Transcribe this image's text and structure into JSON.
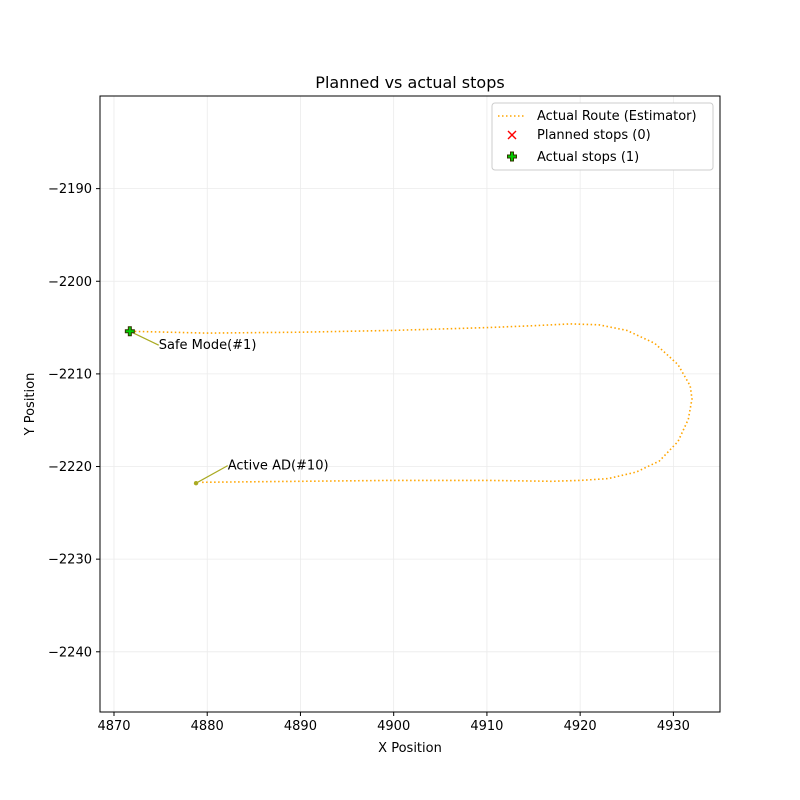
{
  "chart_data": {
    "type": "line",
    "title": "Planned vs actual stops",
    "xlabel": "X Position",
    "ylabel": "Y Position",
    "xlim": [
      4868.5,
      4935
    ],
    "ylim": [
      -2246.5,
      -2180
    ],
    "xticks": [
      4870,
      4880,
      4890,
      4900,
      4910,
      4920,
      4930
    ],
    "yticks": [
      -2240,
      -2230,
      -2220,
      -2210,
      -2200,
      -2190
    ],
    "xtick_labels": [
      "4870",
      "4880",
      "4890",
      "4900",
      "4910",
      "4920",
      "4930"
    ],
    "ytick_labels": [
      "−2240",
      "−2230",
      "−2220",
      "−2210",
      "−2200",
      "−2190"
    ],
    "grid": true,
    "legend_position": "top-right",
    "series": [
      {
        "name": "Actual Route (Estimator)",
        "kind": "dotted-line",
        "color": "#ffa500",
        "x": [
          4871.8,
          4880,
          4890,
          4900,
          4910,
          4915,
          4919,
          4922,
          4925,
          4928,
          4930.5,
          4931.8,
          4932,
          4931.6,
          4930.5,
          4928.5,
          4926,
          4923,
          4920,
          4917,
          4910,
          4900,
          4890,
          4879.3
        ],
        "y": [
          -2205.4,
          -2205.6,
          -2205.5,
          -2205.3,
          -2205.0,
          -2204.8,
          -2204.6,
          -2204.7,
          -2205.3,
          -2206.7,
          -2209.0,
          -2211.3,
          -2212.7,
          -2214.9,
          -2217.3,
          -2219.4,
          -2220.6,
          -2221.3,
          -2221.5,
          -2221.6,
          -2221.5,
          -2221.5,
          -2221.6,
          -2221.7
        ]
      },
      {
        "name": "Planned stops (0)",
        "kind": "x-marker",
        "color": "#ff0000",
        "x": [],
        "y": []
      },
      {
        "name": "Actual stops (1)",
        "kind": "plus-marker",
        "color": "#00cc00",
        "edge_color": "#333300",
        "x": [
          4871.7
        ],
        "y": [
          -2205.4
        ]
      }
    ],
    "annotations": [
      {
        "text": "Safe Mode(#1)",
        "x": 4871.7,
        "y": -2205.4,
        "tx": 4874.8,
        "ty": -2206.9,
        "color": "#aaaa22"
      },
      {
        "text": "Active AD(#10)",
        "x": 4878.8,
        "y": -2221.8,
        "tx": 4882.2,
        "ty": -2219.9,
        "color": "#aaaa22"
      }
    ]
  }
}
